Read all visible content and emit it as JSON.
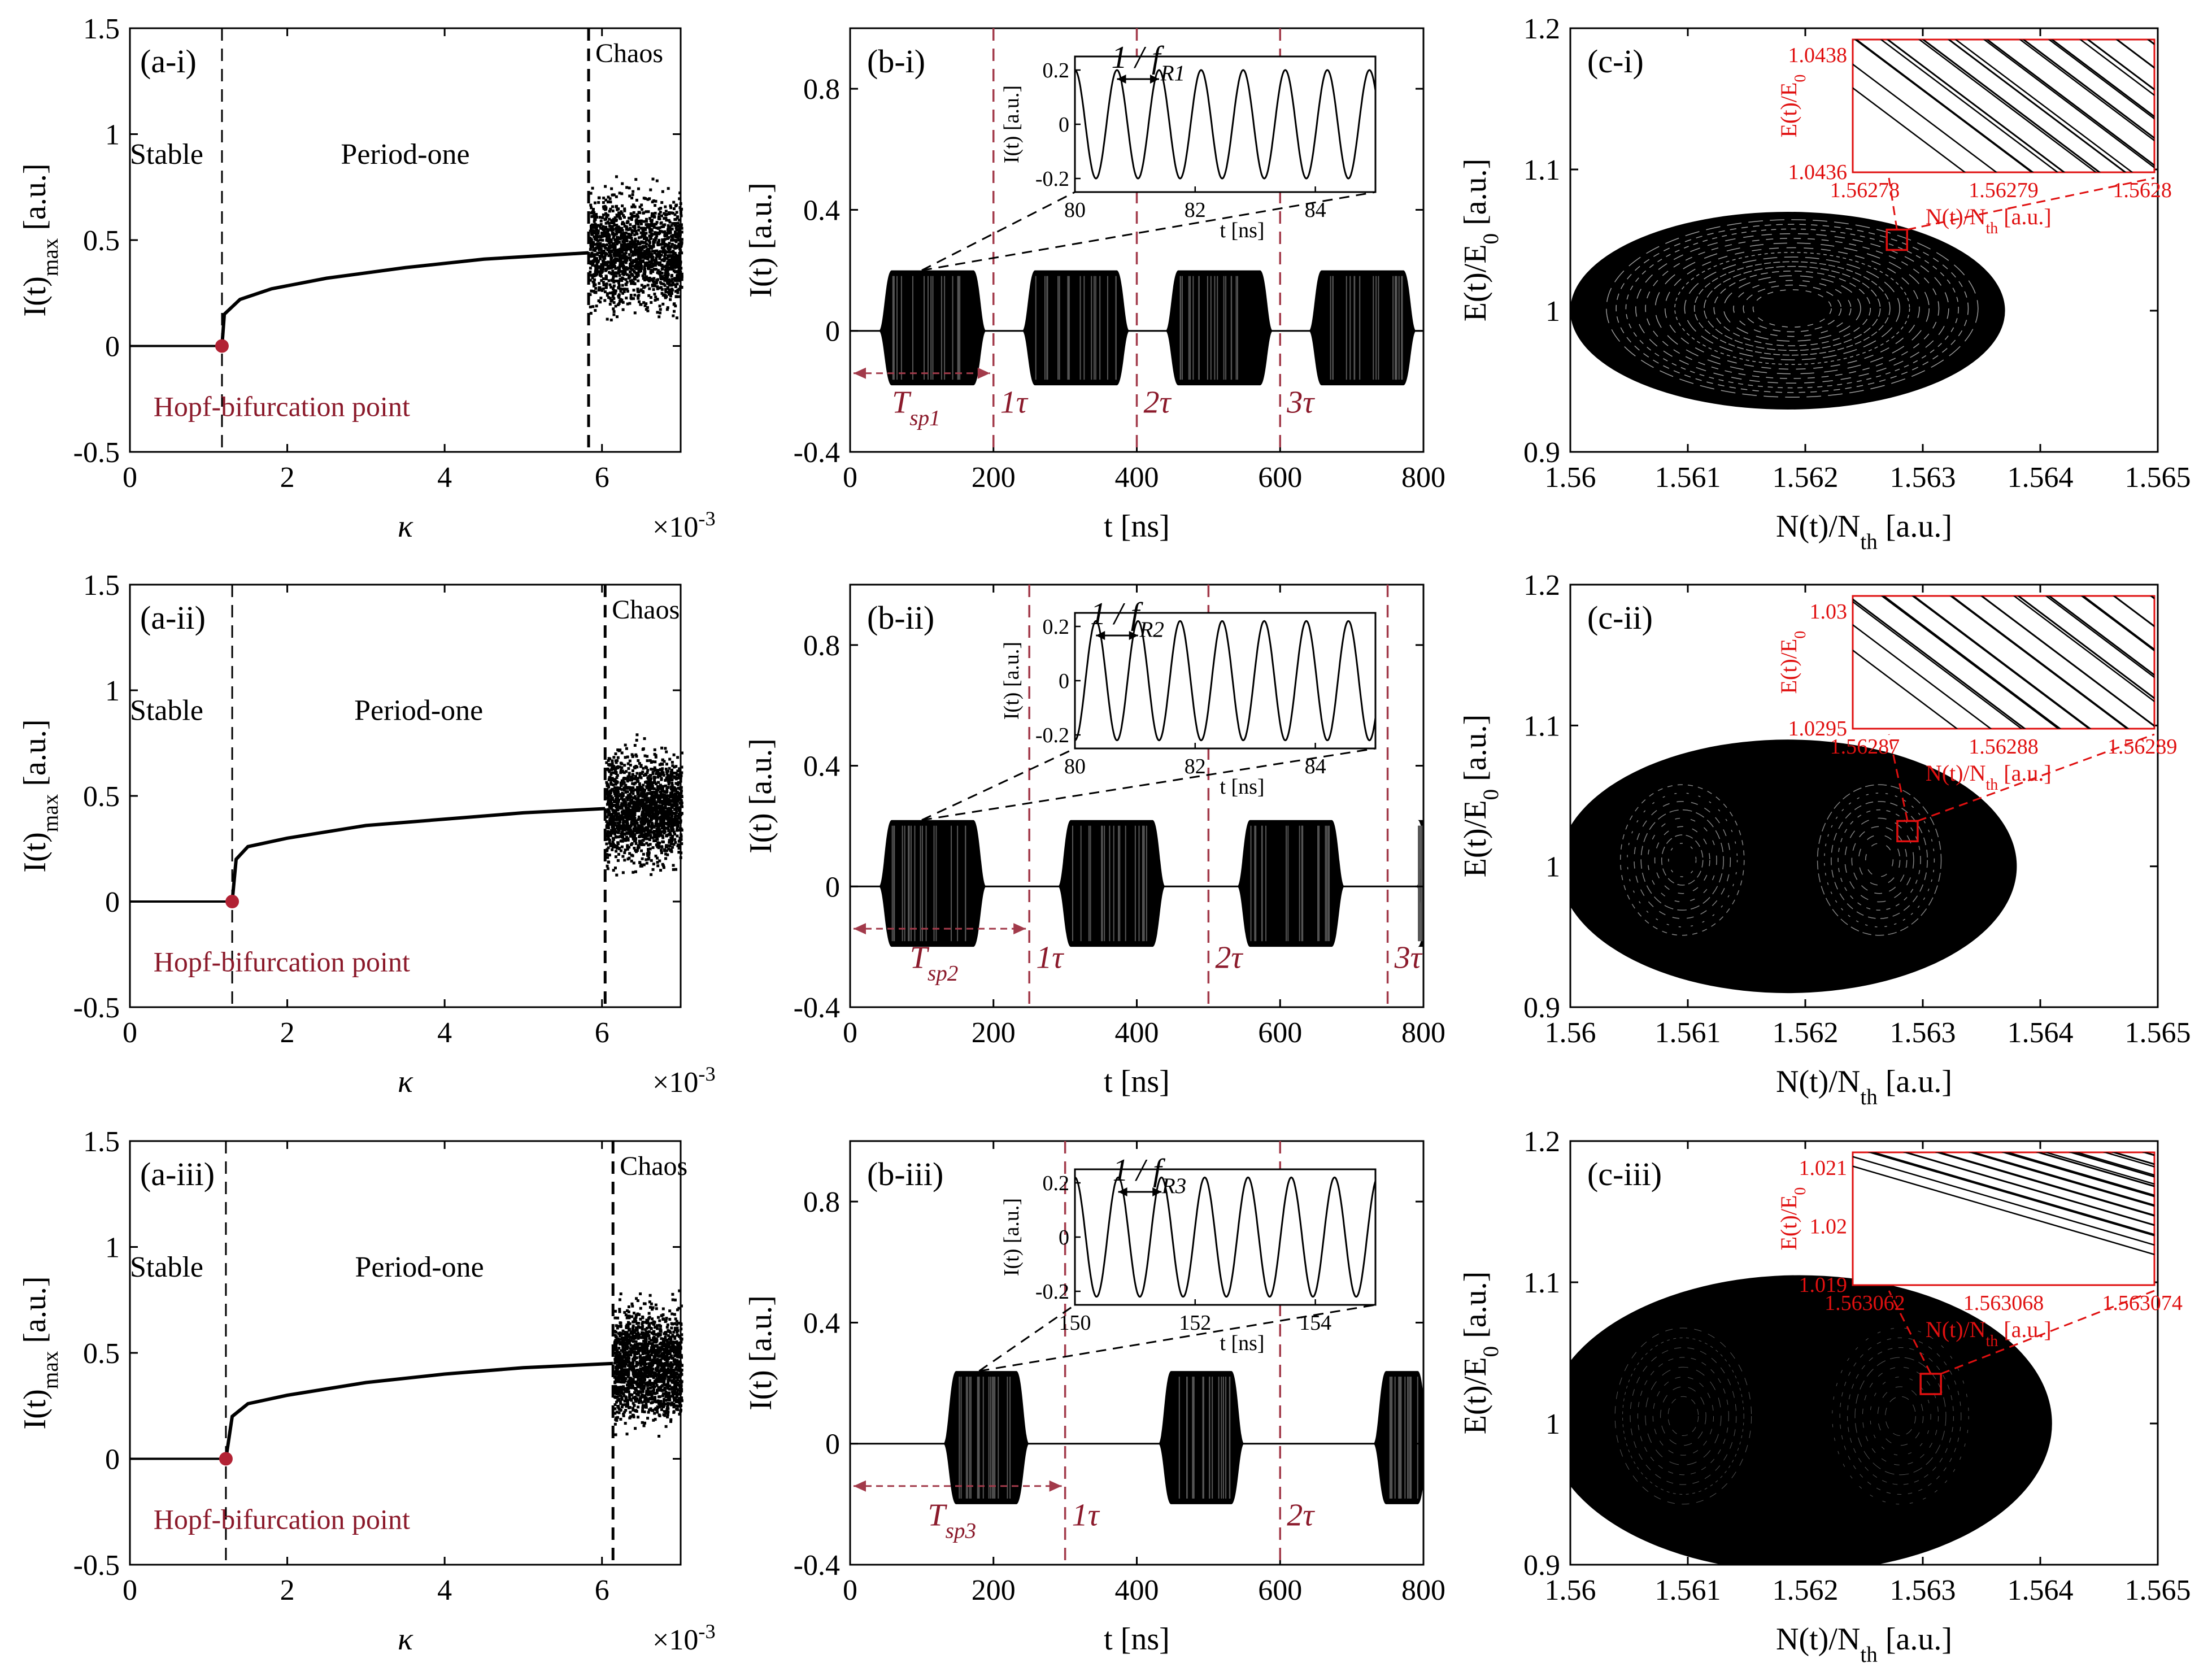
{
  "colors": {
    "axis": "#000000",
    "marker": "#b22234",
    "hopf_text": "#8b1a2b",
    "dash_red": "#a23a4a",
    "inset_red": "#e01010",
    "ink": "#000000"
  },
  "chart_data": [
    {
      "panel": "a-i",
      "type": "scatter",
      "tag": "(a-i)",
      "xlabel": "κ",
      "ylabel": "I(t)",
      "ylabel_sub": "max",
      "ylabel_unit": " [a.u.]",
      "xlim": [
        0,
        7
      ],
      "ylim": [
        -0.5,
        1.5
      ],
      "x_multiplier": "×10",
      "x_exponent": "-3",
      "xticks": [
        0,
        2,
        4,
        6
      ],
      "yticks": [
        -0.5,
        0,
        0.5,
        1,
        1.5
      ],
      "regions": [
        "Stable",
        "Period-one",
        "Chaos"
      ],
      "boundaries": [
        1.17,
        5.83
      ],
      "hopf_point": [
        1.17,
        0
      ],
      "hopf_label": "Hopf-bifurcation point",
      "p1_curve": [
        [
          1.17,
          0
        ],
        [
          1.2,
          0.15
        ],
        [
          1.4,
          0.22
        ],
        [
          1.8,
          0.27
        ],
        [
          2.5,
          0.32
        ],
        [
          3.5,
          0.37
        ],
        [
          4.5,
          0.41
        ],
        [
          5.83,
          0.44
        ]
      ],
      "chaos_range": [
        5.83,
        7
      ],
      "chaos_y": [
        -0.35,
        1.35
      ]
    },
    {
      "panel": "a-ii",
      "type": "scatter",
      "tag": "(a-ii)",
      "xlabel": "κ",
      "ylabel": "I(t)",
      "ylabel_sub": "max",
      "ylabel_unit": " [a.u.]",
      "xlim": [
        0,
        7
      ],
      "ylim": [
        -0.5,
        1.5
      ],
      "x_multiplier": "×10",
      "x_exponent": "-3",
      "xticks": [
        0,
        2,
        4,
        6
      ],
      "yticks": [
        -0.5,
        0,
        0.5,
        1,
        1.5
      ],
      "regions": [
        "Stable",
        "Period-one",
        "Chaos"
      ],
      "boundaries": [
        1.3,
        6.04
      ],
      "hopf_point": [
        1.3,
        0
      ],
      "hopf_label": "Hopf-bifurcation point",
      "p1_curve": [
        [
          1.3,
          0
        ],
        [
          1.35,
          0.2
        ],
        [
          1.5,
          0.26
        ],
        [
          2,
          0.3
        ],
        [
          3,
          0.36
        ],
        [
          4,
          0.39
        ],
        [
          5,
          0.42
        ],
        [
          6.04,
          0.44
        ]
      ],
      "chaos_range": [
        6.04,
        7
      ],
      "chaos_y": [
        -0.45,
        1.3
      ]
    },
    {
      "panel": "a-iii",
      "type": "scatter",
      "tag": "(a-iii)",
      "xlabel": "κ",
      "ylabel": "I(t)",
      "ylabel_sub": "max",
      "ylabel_unit": " [a.u.]",
      "xlim": [
        0,
        7
      ],
      "ylim": [
        -0.5,
        1.5
      ],
      "x_multiplier": "×10",
      "x_exponent": "-3",
      "xticks": [
        0,
        2,
        4,
        6
      ],
      "yticks": [
        -0.5,
        0,
        0.5,
        1,
        1.5
      ],
      "regions": [
        "Stable",
        "Period-one",
        "Chaos"
      ],
      "boundaries": [
        1.22,
        6.14
      ],
      "hopf_point": [
        1.22,
        0
      ],
      "hopf_label": "Hopf-bifurcation point",
      "p1_curve": [
        [
          1.22,
          0
        ],
        [
          1.3,
          0.2
        ],
        [
          1.5,
          0.26
        ],
        [
          2,
          0.3
        ],
        [
          3,
          0.36
        ],
        [
          4,
          0.4
        ],
        [
          5,
          0.43
        ],
        [
          6.14,
          0.45
        ]
      ],
      "chaos_range": [
        6.14,
        7
      ],
      "chaos_y": [
        -0.35,
        1.0
      ]
    },
    {
      "panel": "b-i",
      "type": "line",
      "tag": "(b-i)",
      "xlabel": "t [ns]",
      "ylabel": "I(t) [a.u.]",
      "xlim": [
        0,
        800
      ],
      "ylim": [
        -0.4,
        1.0
      ],
      "xticks": [
        0,
        200,
        400,
        600,
        800
      ],
      "yticks": [
        -0.4,
        0,
        0.4,
        0.8
      ],
      "pulses": [
        [
          40,
          190
        ],
        [
          240,
          390
        ],
        [
          440,
          590
        ],
        [
          640,
          790
        ]
      ],
      "amp_top": 0.2,
      "amp_bot": -0.18,
      "delays": [
        200,
        400,
        600
      ],
      "delay_labels": [
        "1τ",
        "2τ",
        "3τ"
      ],
      "period_label": "T",
      "period_sub": "sp1",
      "period_range": [
        0,
        200
      ],
      "inset": {
        "xlim": [
          80,
          85
        ],
        "ylim": [
          -0.25,
          0.25
        ],
        "xticks": [
          80,
          82,
          84
        ],
        "yticks": [
          -0.2,
          0,
          0.2
        ],
        "xlabel": "t [ns]",
        "ylabel": "I(t) [a.u.]",
        "period": 0.7,
        "phase": 80.0,
        "amp": 0.2,
        "label": "1 / f",
        "label_sub": "R1",
        "source": [
          100,
          0.2
        ]
      }
    },
    {
      "panel": "b-ii",
      "type": "line",
      "tag": "(b-ii)",
      "xlabel": "t [ns]",
      "ylabel": "I(t) [a.u.]",
      "xlim": [
        0,
        800
      ],
      "ylim": [
        -0.4,
        1.0
      ],
      "xticks": [
        0,
        200,
        400,
        600,
        800
      ],
      "yticks": [
        -0.4,
        0,
        0.4,
        0.8
      ],
      "pulses": [
        [
          40,
          190
        ],
        [
          290,
          440
        ],
        [
          540,
          690
        ],
        [
          790,
          810
        ]
      ],
      "amp_top": 0.22,
      "amp_bot": -0.2,
      "delays": [
        250,
        500,
        750
      ],
      "delay_labels": [
        "1τ",
        "2τ",
        "3τ"
      ],
      "period_label": "T",
      "period_sub": "sp2",
      "period_range": [
        0,
        250
      ],
      "inset": {
        "xlim": [
          80,
          85
        ],
        "ylim": [
          -0.25,
          0.25
        ],
        "xticks": [
          80,
          82,
          84
        ],
        "yticks": [
          -0.2,
          0,
          0.2
        ],
        "xlabel": "t [ns]",
        "ylabel": "I(t) [a.u.]",
        "period": 0.7,
        "phase": 80.35,
        "amp": 0.22,
        "label": "1 / f",
        "label_sub": "R2",
        "source": [
          100,
          0.22
        ]
      }
    },
    {
      "panel": "b-iii",
      "type": "line",
      "tag": "(b-iii)",
      "xlabel": "t [ns]",
      "ylabel": "I(t) [a.u.]",
      "xlim": [
        0,
        800
      ],
      "ylim": [
        -0.4,
        1.0
      ],
      "xticks": [
        0,
        200,
        400,
        600,
        800
      ],
      "yticks": [
        -0.4,
        0,
        0.4,
        0.8
      ],
      "pulses": [
        [
          130,
          250
        ],
        [
          430,
          550
        ],
        [
          730,
          810
        ]
      ],
      "amp_top": 0.24,
      "amp_bot": -0.2,
      "delays": [
        300,
        600
      ],
      "delay_labels": [
        "1τ",
        "2τ"
      ],
      "period_label": "T",
      "period_sub": "sp3",
      "period_range": [
        0,
        300
      ],
      "inset": {
        "xlim": [
          150,
          155
        ],
        "ylim": [
          -0.25,
          0.25
        ],
        "xticks": [
          150,
          152,
          154
        ],
        "yticks": [
          -0.2,
          0,
          0.2
        ],
        "xlabel": "t [ns]",
        "ylabel": "I(t) [a.u.]",
        "period": 0.72,
        "phase": 150.0,
        "amp": 0.22,
        "label": "1 / f",
        "label_sub": "R3",
        "source": [
          180,
          0.24
        ]
      }
    },
    {
      "panel": "c-i",
      "type": "scatter",
      "tag": "(c-i)",
      "xlabel": "N(t)/N",
      "xlabel_sub": "th",
      "xlabel_unit": " [a.u.]",
      "ylabel": "E(t)/E",
      "ylabel_sub": "0",
      "ylabel_unit": " [a.u.]",
      "xlim": [
        1.56,
        1.565
      ],
      "ylim": [
        0.9,
        1.2
      ],
      "xticks": [
        "1.56",
        "1.561",
        "1.562",
        "1.563",
        "1.564",
        "1.565"
      ],
      "yticks": [
        "0.9",
        "1",
        "1.1",
        "1.2"
      ],
      "ellipse": {
        "cx": 1.56185,
        "cy": 1.0,
        "rx": 0.00185,
        "ry": 0.07
      },
      "rings": "concentric",
      "zoom_box": [
        1.56278,
        1.0502
      ],
      "inset": {
        "xticks": [
          "1.56278",
          "1.56279",
          "1.5628"
        ],
        "yticks": [
          "1.0438",
          "1.0436"
        ],
        "xlabel": "N(t)/N",
        "xlabel_sub": "th",
        "xlabel_unit": " [a.u.]",
        "ylabel": "E(t)/E",
        "ylabel_sub": "0"
      }
    },
    {
      "panel": "c-ii",
      "type": "scatter",
      "tag": "(c-ii)",
      "xlabel": "N(t)/N",
      "xlabel_sub": "th",
      "xlabel_unit": " [a.u.]",
      "ylabel": "E(t)/E",
      "ylabel_sub": "0",
      "ylabel_unit": " [a.u.]",
      "xlim": [
        1.56,
        1.565
      ],
      "ylim": [
        0.9,
        1.2
      ],
      "xticks": [
        "1.56",
        "1.561",
        "1.562",
        "1.563",
        "1.564",
        "1.565"
      ],
      "yticks": [
        "0.9",
        "1",
        "1.1",
        "1.2"
      ],
      "ellipse": {
        "cx": 1.56185,
        "cy": 1.0,
        "rx": 0.00195,
        "ry": 0.09
      },
      "rings": "two-lobes",
      "zoom_box": [
        1.56287,
        1.025
      ],
      "inset": {
        "xticks": [
          "1.56287",
          "1.56288",
          "1.56289"
        ],
        "yticks": [
          "1.03",
          "1.0295"
        ],
        "xlabel": "N(t)/N",
        "xlabel_sub": "th",
        "xlabel_unit": " [a.u.]",
        "ylabel": "E(t)/E",
        "ylabel_sub": "0"
      }
    },
    {
      "panel": "c-iii",
      "type": "scatter",
      "tag": "(c-iii)",
      "xlabel": "N(t)/N",
      "xlabel_sub": "th",
      "xlabel_unit": " [a.u.]",
      "ylabel": "E(t)/E",
      "ylabel_sub": "0",
      "ylabel_unit": " [a.u.]",
      "xlim": [
        1.56,
        1.565
      ],
      "ylim": [
        0.9,
        1.2
      ],
      "xticks": [
        "1.56",
        "1.561",
        "1.562",
        "1.563",
        "1.564",
        "1.565"
      ],
      "yticks": [
        "0.9",
        "1",
        "1.1",
        "1.2"
      ],
      "ellipse": {
        "cx": 1.56195,
        "cy": 1.0,
        "rx": 0.00215,
        "ry": 0.105
      },
      "rings": "two-lobes-faint",
      "zoom_box": [
        1.563068,
        1.028
      ],
      "inset": {
        "xticks": [
          "1.563062",
          "1.563068",
          "1.563074"
        ],
        "yticks": [
          "1.021",
          "1.02",
          "1.019"
        ],
        "xlabel": "N(t)/N",
        "xlabel_sub": "th",
        "xlabel_unit": " [a.u.]",
        "ylabel": "E(t)/E",
        "ylabel_sub": "0"
      }
    }
  ]
}
